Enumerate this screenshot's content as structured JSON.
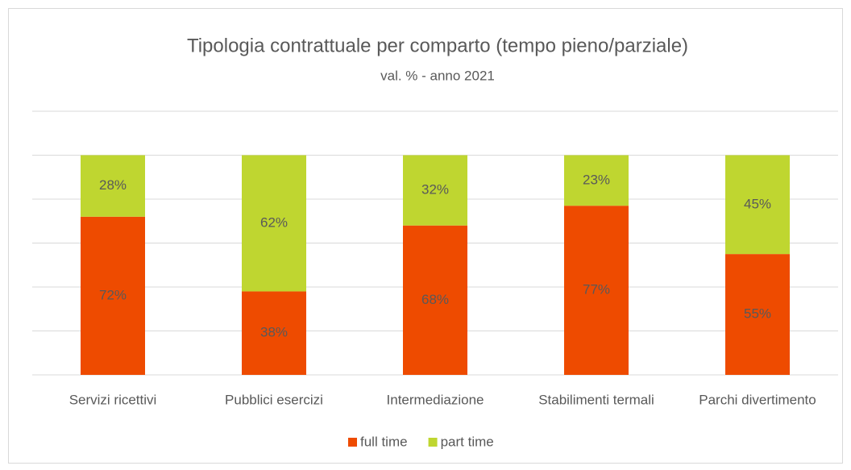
{
  "chart_data": {
    "type": "stacked_bar",
    "title": "Tipologia contrattuale per comparto (tempo pieno/parziale)",
    "subtitle": "val. % - anno 2021",
    "categories": [
      "Servizi ricettivi",
      "Pubblici esercizi",
      "Intermediazione",
      "Stabilimenti termali",
      "Parchi divertimento"
    ],
    "series": [
      {
        "name": "full time",
        "color": "#ee4b00",
        "values": [
          72,
          38,
          68,
          77,
          55
        ],
        "value_labels": [
          "72%",
          "38%",
          "68%",
          "77%",
          "55%"
        ]
      },
      {
        "name": "part time",
        "color": "#bfd630",
        "values": [
          28,
          62,
          32,
          23,
          45
        ],
        "value_labels": [
          "28%",
          "62%",
          "32%",
          "23%",
          "45%"
        ]
      }
    ],
    "ylim": [
      0,
      120
    ],
    "yticks": [
      0,
      20,
      40,
      60,
      80,
      100,
      120
    ],
    "grid": true,
    "legend": "bottom"
  }
}
